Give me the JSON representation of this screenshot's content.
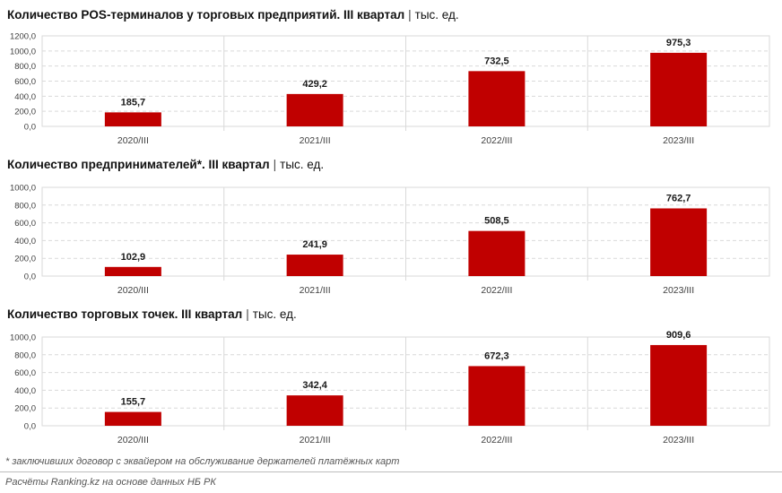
{
  "colors": {
    "bar": "#c00000",
    "grid": "#d9d9d9",
    "axis": "#bfbfbf"
  },
  "chart_data": [
    {
      "type": "bar",
      "title": "Количество POS-терминалов у торговых предприятий. III квартал",
      "unit": "тыс. ед.",
      "categories": [
        "2020/III",
        "2021/III",
        "2022/III",
        "2023/III"
      ],
      "values": [
        185.7,
        429.2,
        732.5,
        975.3
      ],
      "value_labels": [
        "185,7",
        "429,2",
        "732,5",
        "975,3"
      ],
      "ylim": [
        0,
        1200
      ],
      "yticks": [
        "0,0",
        "200,0",
        "400,0",
        "600,0",
        "800,0",
        "1000,0",
        "1200,0"
      ],
      "grid": true
    },
    {
      "type": "bar",
      "title": "Количество предпринимателей*. III квартал",
      "unit": "тыс. ед.",
      "categories": [
        "2020/III",
        "2021/III",
        "2022/III",
        "2023/III"
      ],
      "values": [
        102.9,
        241.9,
        508.5,
        762.7
      ],
      "value_labels": [
        "102,9",
        "241,9",
        "508,5",
        "762,7"
      ],
      "ylim": [
        0,
        1000
      ],
      "yticks": [
        "0,0",
        "200,0",
        "400,0",
        "600,0",
        "800,0",
        "1000,0"
      ],
      "grid": true
    },
    {
      "type": "bar",
      "title": "Количество торговых точек. III квартал",
      "unit": "тыс. ед.",
      "categories": [
        "2020/III",
        "2021/III",
        "2022/III",
        "2023/III"
      ],
      "values": [
        155.7,
        342.4,
        672.3,
        909.6
      ],
      "value_labels": [
        "155,7",
        "342,4",
        "672,3",
        "909,6"
      ],
      "ylim": [
        0,
        1000
      ],
      "yticks": [
        "0,0",
        "200,0",
        "400,0",
        "600,0",
        "800,0",
        "1000,0"
      ],
      "grid": true
    }
  ],
  "footnote": "* заключивших договор с эквайером на обслуживание держателей платёжных карт",
  "source": "Расчёты Ranking.kz на основе данных НБ РК"
}
